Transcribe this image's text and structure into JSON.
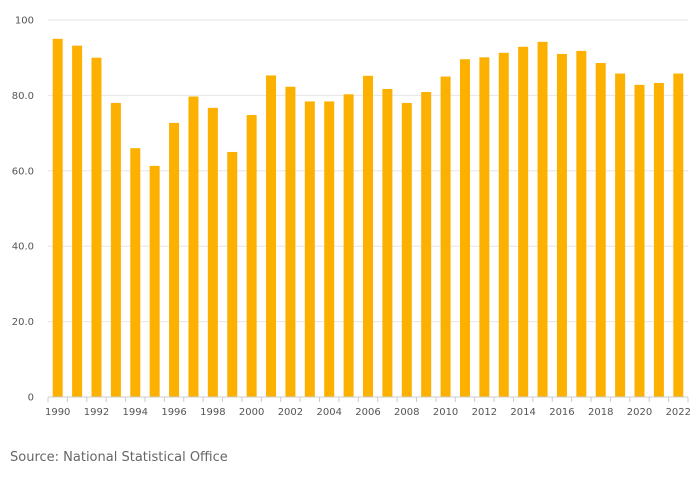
{
  "chart_data": {
    "type": "bar",
    "title": "",
    "xlabel": "",
    "ylabel": "",
    "x": [
      1990,
      1991,
      1992,
      1993,
      1994,
      1995,
      1996,
      1997,
      1998,
      1999,
      2000,
      2001,
      2002,
      2003,
      2004,
      2005,
      2006,
      2007,
      2008,
      2009,
      2010,
      2011,
      2012,
      2013,
      2014,
      2015,
      2016,
      2017,
      2018,
      2019,
      2020,
      2021,
      2022
    ],
    "values": [
      95.0,
      93.2,
      90.0,
      78.0,
      66.0,
      61.3,
      72.7,
      79.7,
      76.7,
      65.0,
      74.8,
      85.3,
      82.3,
      78.4,
      78.4,
      80.3,
      85.2,
      81.7,
      78.0,
      80.9,
      85.0,
      89.6,
      90.1,
      91.3,
      92.9,
      94.2,
      91.0,
      91.8,
      88.6,
      85.8,
      82.8,
      83.3,
      85.8
    ],
    "x_tick_labels": [
      "1990",
      "1992",
      "1994",
      "1996",
      "1998",
      "2000",
      "2002",
      "2004",
      "2006",
      "2008",
      "2010",
      "2012",
      "2014",
      "2016",
      "2018",
      "2020",
      "2022"
    ],
    "y_tick_labels": [
      "0",
      "20.0",
      "40.0",
      "60.0",
      "80.0",
      "100"
    ],
    "y_ticks": [
      0,
      20,
      40,
      60,
      80,
      100
    ],
    "ylim": [
      0,
      100
    ],
    "grid": true,
    "bar_color": "#FCB100"
  },
  "source": "Source: National Statistical Office"
}
